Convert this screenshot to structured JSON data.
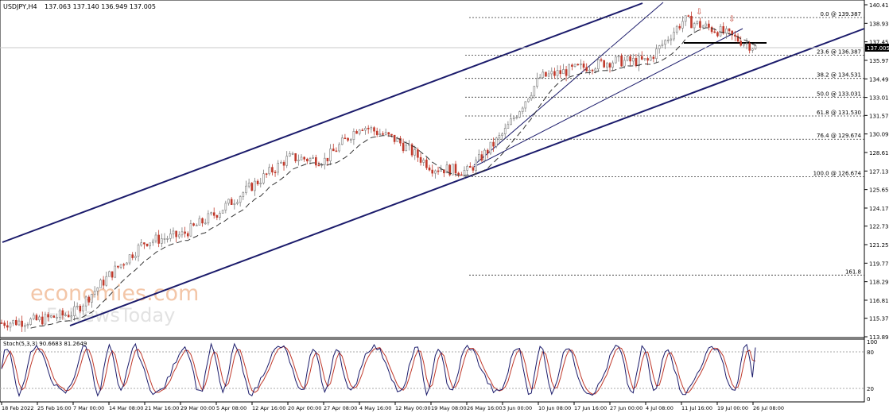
{
  "header": {
    "symbol": "USDJPY,H4",
    "ohlc": "137.063 137.140 136.949 137.005"
  },
  "price_axis": {
    "ticks": [
      "140.410",
      "138.930",
      "137.450",
      "135.970",
      "134.490",
      "133.010",
      "131.570",
      "130.090",
      "128.610",
      "127.130",
      "125.650",
      "124.170",
      "122.730",
      "121.250",
      "119.770",
      "118.290",
      "116.810",
      "115.370",
      "113.890"
    ],
    "current": "137.005"
  },
  "time_axis": [
    "18 Feb 2022",
    "25 Feb 16:00",
    "7 Mar 00:00",
    "14 Mar 08:00",
    "21 Mar 16:00",
    "29 Mar 00:00",
    "5 Apr 08:00",
    "12 Apr 16:00",
    "20 Apr 00:00",
    "27 Apr 08:00",
    "4 May 16:00",
    "12 May 00:00",
    "19 May 08:00",
    "26 May 16:00",
    "3 Jun 00:00",
    "10 Jun 08:00",
    "17 Jun 16:00",
    "27 Jun 00:00",
    "4 Jul 08:00",
    "11 Jul 16:00",
    "19 Jul 00:00",
    "26 Jul 08:00"
  ],
  "fib_levels": [
    {
      "label": "0.0 @ 139.387",
      "value": 139.387
    },
    {
      "label": "23.6 @ 136.387",
      "value": 136.387
    },
    {
      "label": "38.2 @ 134.531",
      "value": 134.531
    },
    {
      "label": "50.0 @ 133.031",
      "value": 133.031
    },
    {
      "label": "61.8 @ 131.530",
      "value": 131.53
    },
    {
      "label": "76.4 @ 129.674",
      "value": 129.674
    },
    {
      "label": "100.0 @ 126.674",
      "value": 126.674
    },
    {
      "label": "161.8",
      "value": 118.82
    }
  ],
  "stoch": {
    "label": "Stoch(5,3,3) 90.6683 81.2649",
    "ticks": [
      "100",
      "80",
      "20",
      "0"
    ]
  },
  "watermark": {
    "line1": "economies.com",
    "line2": "FxNewsToday"
  },
  "colors": {
    "up": "#7a7a7a",
    "down": "#c0392b",
    "channel": "#1b1b6b",
    "stoch_main": "#1b1b6b",
    "stoch_signal": "#c0392b"
  },
  "chart_data": {
    "type": "candlestick",
    "symbol": "USDJPY",
    "timeframe": "H4",
    "ylim": [
      113.89,
      140.9
    ],
    "x": [
      "18 Feb 2022",
      "25 Feb 16:00",
      "7 Mar 00:00",
      "14 Mar 08:00",
      "21 Mar 16:00",
      "29 Mar 00:00",
      "5 Apr 08:00",
      "12 Apr 16:00",
      "20 Apr 00:00",
      "27 Apr 08:00",
      "4 May 16:00",
      "12 May 00:00",
      "19 May 08:00",
      "26 May 16:00",
      "3 Jun 00:00",
      "10 Jun 08:00",
      "17 Jun 16:00",
      "27 Jun 00:00",
      "4 Jul 08:00",
      "11 Jul 16:00",
      "19 Jul 00:00",
      "26 Jul 08:00"
    ],
    "close_path": [
      115.0,
      115.2,
      115.8,
      118.8,
      121.5,
      122.0,
      123.8,
      126.0,
      128.2,
      128.0,
      130.8,
      129.6,
      127.4,
      127.1,
      130.2,
      134.6,
      135.3,
      135.9,
      135.9,
      139.2,
      138.3,
      137.0
    ]
  }
}
